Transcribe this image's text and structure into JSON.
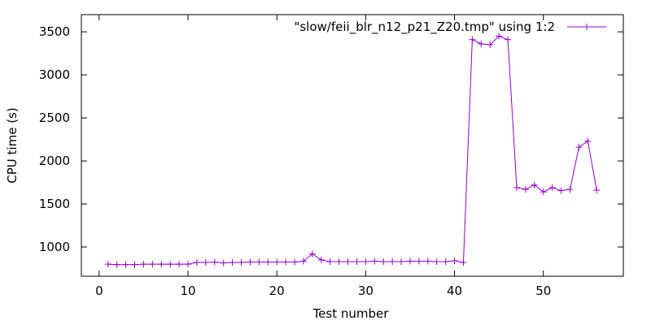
{
  "chart_data": {
    "type": "line",
    "xlabel": "Test number",
    "ylabel": "CPU time (s)",
    "xlim": [
      -2,
      59
    ],
    "ylim": [
      660,
      3700
    ],
    "xticks": [
      0,
      10,
      20,
      30,
      40,
      50
    ],
    "yticks": [
      1000,
      1500,
      2000,
      2500,
      3000,
      3500
    ],
    "grid": false,
    "legend_position": "top-right",
    "series": [
      {
        "name": "\"slow/feii_blr_n12_p21_Z20.tmp\" using 1:2",
        "color": "#9400d3",
        "marker": "plus",
        "x": [
          1,
          2,
          3,
          4,
          5,
          6,
          7,
          8,
          9,
          10,
          11,
          12,
          13,
          14,
          15,
          16,
          17,
          18,
          19,
          20,
          21,
          22,
          23,
          24,
          25,
          26,
          27,
          28,
          29,
          30,
          31,
          32,
          33,
          34,
          35,
          36,
          37,
          38,
          39,
          40,
          41,
          42,
          43,
          44,
          45,
          46,
          47,
          48,
          49,
          50,
          51,
          52,
          53,
          54,
          55,
          56
        ],
        "y": [
          800,
          795,
          795,
          795,
          800,
          800,
          800,
          800,
          800,
          800,
          820,
          820,
          825,
          815,
          820,
          820,
          825,
          825,
          825,
          825,
          825,
          825,
          835,
          920,
          850,
          830,
          830,
          830,
          830,
          830,
          835,
          830,
          830,
          830,
          835,
          835,
          835,
          830,
          830,
          840,
          820,
          3410,
          3360,
          3350,
          3450,
          3410,
          1690,
          1670,
          1720,
          1640,
          1690,
          1655,
          1670,
          2160,
          2230,
          1660
        ]
      }
    ]
  }
}
